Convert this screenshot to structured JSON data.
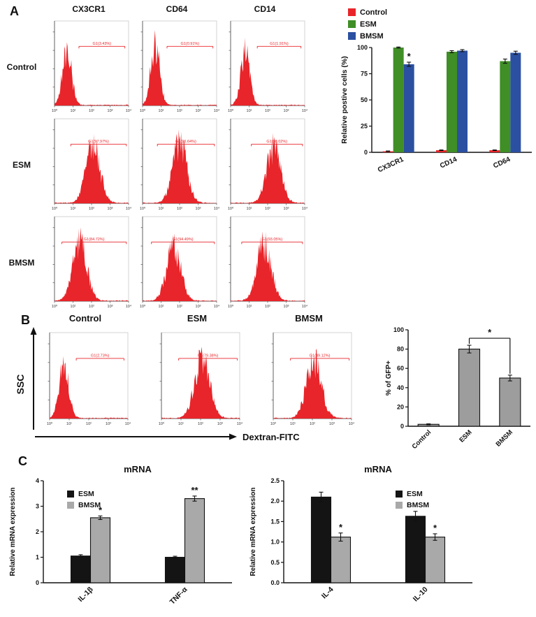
{
  "labels": {
    "a": "A",
    "b": "B",
    "c": "C"
  },
  "colors": {
    "histogram": "#e8252a",
    "control": "#e8252a",
    "esm": "#3f8e26",
    "bmsm": "#2b50a1",
    "gray_bar": "#9d9d9d",
    "black_bar": "#141414",
    "light_gray_bar": "#a9a9a9"
  },
  "flow_panels": {
    "a": {
      "columns": [
        "CX3CR1",
        "CD64",
        "CD14"
      ],
      "x_ticks": [
        "10⁰",
        "10¹",
        "10²",
        "10³",
        "10⁴"
      ],
      "rows": [
        {
          "label": "Control",
          "plots": [
            {
              "gate": "G1(3.43%)",
              "peak": 0.17
            },
            {
              "gate": "G1(0.91%)",
              "peak": 0.17
            },
            {
              "gate": "G1(1.91%)",
              "peak": 0.2
            }
          ]
        },
        {
          "label": "ESM",
          "plots": [
            {
              "gate": "G1(97.97%)",
              "peak": 0.52
            },
            {
              "gate": "G1(96.64%)",
              "peak": 0.5
            },
            {
              "gate": "G1(98.02%)",
              "peak": 0.58
            }
          ]
        },
        {
          "label": "BMSM",
          "plots": [
            {
              "gate": "G1(84.72%)",
              "peak": 0.34
            },
            {
              "gate": "G1(94.49%)",
              "peak": 0.42
            },
            {
              "gate": "G1(93.05%)",
              "peak": 0.45
            }
          ]
        }
      ]
    },
    "b": {
      "y_axis_label": "SSC",
      "x_axis_label": "Dextran-FITC",
      "x_ticks": [
        "10⁰",
        "10¹",
        "10²",
        "10³",
        "10⁴"
      ],
      "plots": [
        {
          "title": "Control",
          "gate": "G1(2.73%)",
          "peak": 0.18
        },
        {
          "title": "ESM",
          "gate": "G1(79.38%)",
          "peak": 0.52
        },
        {
          "title": "BMSM",
          "gate": "G1(49.12%)",
          "peak": 0.52
        }
      ]
    }
  },
  "chart_data": [
    {
      "id": "panel_a_bar",
      "type": "bar",
      "title": "",
      "ylabel": "Relative postive cells (%)",
      "ylim": [
        0,
        100
      ],
      "yticks": [
        0,
        25,
        50,
        75,
        100
      ],
      "categories": [
        "CX3CR1",
        "CD14",
        "CD64"
      ],
      "legend_position": "top-left",
      "series": [
        {
          "name": "Control",
          "color": "#e8252a",
          "values": [
            1,
            2,
            2
          ],
          "errors": [
            0.3,
            0.3,
            0.3
          ]
        },
        {
          "name": "ESM",
          "color": "#3f8e26",
          "values": [
            100,
            96,
            87
          ],
          "errors": [
            0.5,
            1,
            2
          ]
        },
        {
          "name": "BMSM",
          "color": "#2b50a1",
          "values": [
            84,
            97,
            95
          ],
          "errors": [
            2,
            1,
            1.5
          ]
        }
      ],
      "annotations": [
        {
          "series": "BMSM",
          "category": "CX3CR1",
          "text": "*"
        }
      ]
    },
    {
      "id": "panel_b_bar",
      "type": "bar",
      "title": "",
      "ylabel": "% of GFP+",
      "ylim": [
        0,
        100
      ],
      "yticks": [
        0,
        20,
        40,
        60,
        80,
        100
      ],
      "categories": [
        "Control",
        "ESM",
        "BMSM"
      ],
      "legend_position": "none",
      "series": [
        {
          "name": "",
          "color": "#9d9d9d",
          "values": [
            2,
            80,
            50
          ],
          "errors": [
            0.5,
            4,
            3
          ]
        }
      ],
      "sig_bracket": {
        "from": "ESM",
        "to": "BMSM",
        "text": "*"
      }
    },
    {
      "id": "panel_c_left",
      "type": "bar",
      "title": "mRNA",
      "ylabel": "Relative mRNA expression",
      "ylim": [
        0,
        4
      ],
      "yticks": [
        0,
        1,
        2,
        3,
        4
      ],
      "ytick_labels": [
        "0",
        "1",
        "2",
        "3",
        "4"
      ],
      "categories": [
        "IL-1β",
        "TNF-α"
      ],
      "legend_position": "inside-top-left",
      "series": [
        {
          "name": "ESM",
          "color": "#141414",
          "values": [
            1.05,
            1.0
          ],
          "errors": [
            0.05,
            0.04
          ]
        },
        {
          "name": "BMSM",
          "color": "#a9a9a9",
          "values": [
            2.55,
            3.3
          ],
          "errors": [
            0.07,
            0.1
          ]
        }
      ],
      "annotations": [
        {
          "series": "BMSM",
          "category": "IL-1β",
          "text": "*"
        },
        {
          "series": "BMSM",
          "category": "TNF-α",
          "text": "**"
        }
      ]
    },
    {
      "id": "panel_c_right",
      "type": "bar",
      "title": "mRNA",
      "ylabel": "Relative mRNA expression",
      "ylim": [
        0,
        2.5
      ],
      "yticks": [
        0,
        0.5,
        1.0,
        1.5,
        2.0,
        2.5
      ],
      "ytick_labels": [
        "0.0",
        "0.5",
        "1.0",
        "1.5",
        "2.0",
        "2.5"
      ],
      "categories": [
        "IL-4",
        "IL-10"
      ],
      "legend_position": "inside-top-right",
      "series": [
        {
          "name": "ESM",
          "color": "#141414",
          "values": [
            2.1,
            1.63
          ],
          "errors": [
            0.12,
            0.12
          ]
        },
        {
          "name": "BMSM",
          "color": "#a9a9a9",
          "values": [
            1.12,
            1.12
          ],
          "errors": [
            0.1,
            0.08
          ]
        }
      ],
      "annotations": [
        {
          "series": "BMSM",
          "category": "IL-4",
          "text": "*"
        },
        {
          "series": "BMSM",
          "category": "IL-10",
          "text": "*"
        }
      ]
    }
  ]
}
